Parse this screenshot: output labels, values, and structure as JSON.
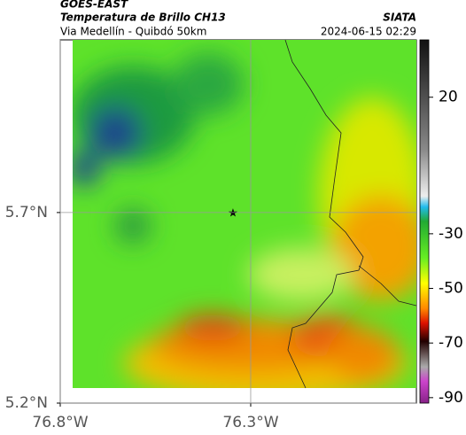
{
  "header": {
    "title": "GOES-EAST",
    "subtitle": "Temperatura de Brillo CH13",
    "source": "SIATA",
    "location": "Via Medellín - Quibdó 50km",
    "datetime": "2024-06-15 02:29"
  },
  "map": {
    "xlim": [
      -76.8,
      -75.865
    ],
    "ylim": [
      5.2,
      6.153
    ],
    "xticks": [
      {
        "value": -76.8,
        "label": "76.8°W"
      },
      {
        "value": -76.3,
        "label": "76.3°W"
      }
    ],
    "yticks": [
      {
        "value": 5.7,
        "label": "5.7°N"
      },
      {
        "value": 5.2,
        "label": "5.2°N"
      }
    ]
  },
  "colorbar": {
    "lim": [
      -92,
      41
    ],
    "ticks": [
      20,
      -30,
      -50,
      -70,
      -90
    ]
  }
}
